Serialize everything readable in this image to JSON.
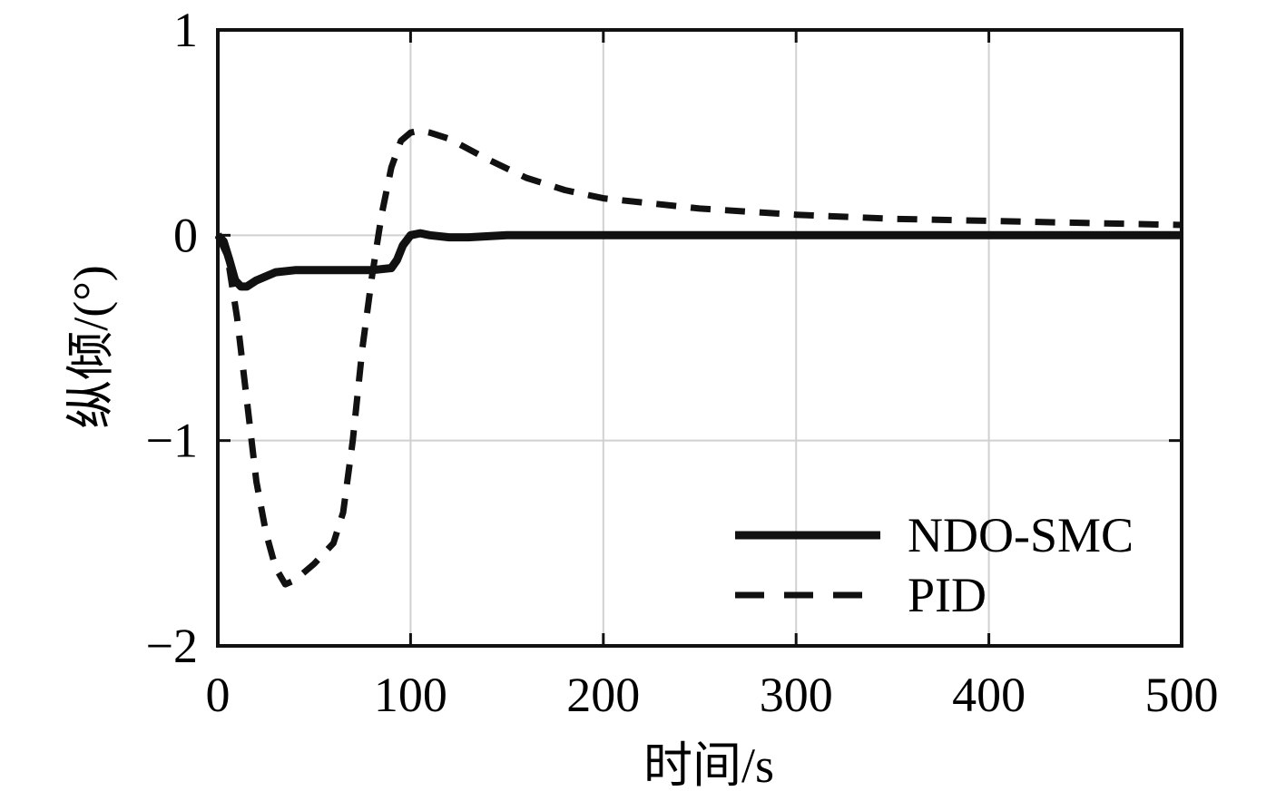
{
  "chart_data": {
    "type": "line",
    "xlabel": "时间/s",
    "ylabel": "纵倾/(°)",
    "xlim": [
      0,
      500
    ],
    "ylim": [
      -2,
      1
    ],
    "xticks": [
      0,
      100,
      200,
      300,
      400,
      500
    ],
    "yticks": [
      1,
      0,
      -1,
      -2
    ],
    "xtick_labels": [
      "0",
      "100",
      "200",
      "300",
      "400",
      "500"
    ],
    "ytick_labels": [
      "1",
      "0",
      "−1",
      "−2"
    ],
    "grid": true,
    "legend_position": "bottom-right",
    "series": [
      {
        "name": "NDO-SMC",
        "style": "solid",
        "color": "#111111",
        "x": [
          0,
          3,
          6,
          9,
          12,
          15,
          20,
          25,
          30,
          40,
          50,
          60,
          70,
          80,
          90,
          93,
          96,
          100,
          105,
          110,
          120,
          130,
          150,
          200,
          300,
          400,
          500
        ],
        "y": [
          0.0,
          -0.03,
          -0.12,
          -0.22,
          -0.25,
          -0.25,
          -0.22,
          -0.2,
          -0.18,
          -0.17,
          -0.17,
          -0.17,
          -0.17,
          -0.17,
          -0.16,
          -0.12,
          -0.05,
          0.0,
          0.01,
          0.0,
          -0.01,
          -0.01,
          0.0,
          0.0,
          0.0,
          0.0,
          0.0
        ]
      },
      {
        "name": "PID",
        "style": "dashed",
        "color": "#111111",
        "x": [
          0,
          5,
          10,
          15,
          20,
          25,
          30,
          35,
          40,
          50,
          60,
          65,
          70,
          75,
          80,
          85,
          90,
          95,
          100,
          105,
          110,
          120,
          140,
          160,
          180,
          200,
          250,
          300,
          350,
          400,
          450,
          500
        ],
        "y": [
          0.0,
          -0.1,
          -0.4,
          -0.8,
          -1.2,
          -1.45,
          -1.62,
          -1.7,
          -1.68,
          -1.6,
          -1.5,
          -1.35,
          -1.0,
          -0.55,
          -0.2,
          0.1,
          0.33,
          0.46,
          0.5,
          0.51,
          0.5,
          0.47,
          0.37,
          0.28,
          0.22,
          0.18,
          0.13,
          0.1,
          0.08,
          0.07,
          0.06,
          0.05
        ]
      }
    ]
  }
}
